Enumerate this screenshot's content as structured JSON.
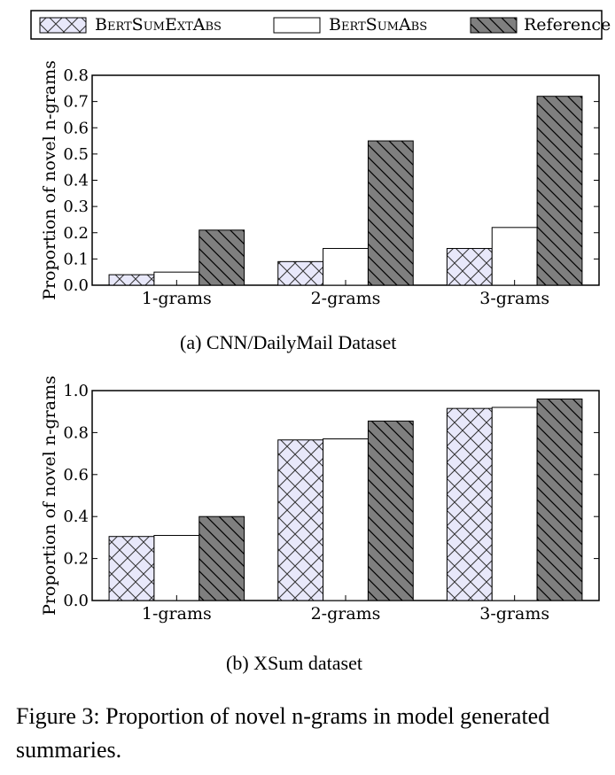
{
  "legend": [
    {
      "label": "BertSumExtAbs",
      "pattern": "crosshatch",
      "fill": "#e8e8fa"
    },
    {
      "label": "BertSumAbs",
      "pattern": "none",
      "fill": "#ffffff"
    },
    {
      "label": "Reference",
      "pattern": "diagonal",
      "fill": "#7f7f7f"
    }
  ],
  "chart_data": [
    {
      "type": "bar",
      "caption": "(a) CNN/DailyMail Dataset",
      "ylabel": "Proportion of novel n-grams",
      "categories": [
        "1-grams",
        "2-grams",
        "3-grams"
      ],
      "ylim": [
        0,
        0.8
      ],
      "yticks": [
        "0.0",
        "0.1",
        "0.2",
        "0.3",
        "0.4",
        "0.5",
        "0.6",
        "0.7",
        "0.8"
      ],
      "series": [
        {
          "name": "BertSumExtAbs",
          "values": [
            0.04,
            0.09,
            0.14
          ]
        },
        {
          "name": "BertSumAbs",
          "values": [
            0.05,
            0.14,
            0.22
          ]
        },
        {
          "name": "Reference",
          "values": [
            0.21,
            0.55,
            0.72
          ]
        }
      ]
    },
    {
      "type": "bar",
      "caption": "(b) XSum dataset",
      "ylabel": "Proportion of novel n-grams",
      "categories": [
        "1-grams",
        "2-grams",
        "3-grams"
      ],
      "ylim": [
        0,
        1.0
      ],
      "yticks": [
        "0.0",
        "0.2",
        "0.4",
        "0.6",
        "0.8",
        "1.0"
      ],
      "series": [
        {
          "name": "BertSumExtAbs",
          "values": [
            0.305,
            0.765,
            0.915
          ]
        },
        {
          "name": "BertSumAbs",
          "values": [
            0.31,
            0.77,
            0.92
          ]
        },
        {
          "name": "Reference",
          "values": [
            0.4,
            0.855,
            0.96
          ]
        }
      ]
    }
  ],
  "figure_caption": "Figure 3: Proportion of novel n-grams in model generated summaries."
}
